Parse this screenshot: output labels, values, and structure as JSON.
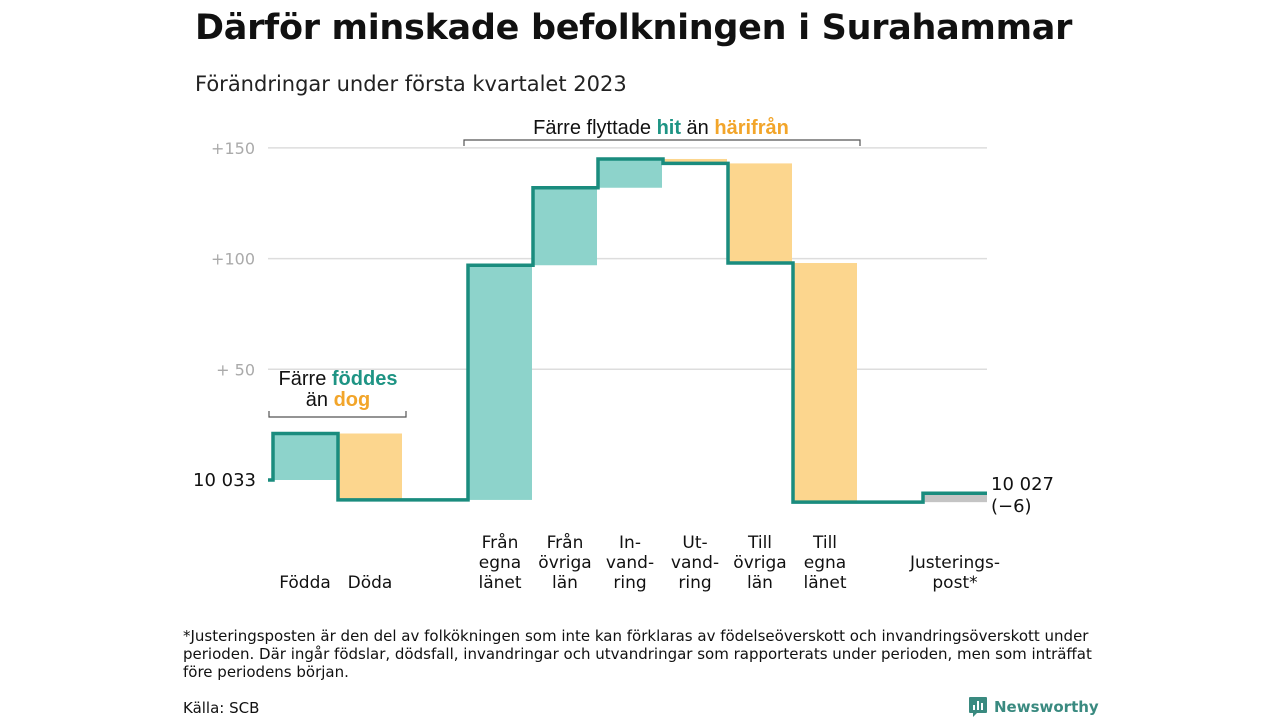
{
  "chart_data": {
    "type": "waterfall",
    "title": "Därför minskade befolkningen i Surahammar",
    "subtitle": "Förändringar under första kvartalet 2023",
    "baseline": 0,
    "start_label": "10 033",
    "end_label": "10 027",
    "end_change_label": "(−6)",
    "ylim": [
      -12,
      152
    ],
    "y_ticks": [
      {
        "value": 50,
        "label": "+ 50"
      },
      {
        "value": 100,
        "label": "+100"
      },
      {
        "value": 150,
        "label": "+150"
      }
    ],
    "grid": true,
    "steps": [
      {
        "lines": [
          "Födda"
        ],
        "value": 21,
        "direction": "up"
      },
      {
        "lines": [
          "Döda"
        ],
        "value": -30,
        "direction": "down"
      },
      {
        "lines": [
          "Från",
          "egna",
          "länet"
        ],
        "value": 106,
        "direction": "up"
      },
      {
        "lines": [
          "Från",
          "övriga",
          "län"
        ],
        "value": 35,
        "direction": "up"
      },
      {
        "lines": [
          "In-",
          "vand-",
          "ring"
        ],
        "value": 13,
        "direction": "up"
      },
      {
        "lines": [
          "Ut-",
          "vand-",
          "ring"
        ],
        "value": -2,
        "direction": "down"
      },
      {
        "lines": [
          "Till",
          "övriga",
          "län"
        ],
        "value": -45,
        "direction": "down"
      },
      {
        "lines": [
          "Till",
          "egna",
          "länet"
        ],
        "value": -108,
        "direction": "down"
      },
      {
        "lines": [
          "Justerings-",
          "post*"
        ],
        "value": 4,
        "direction": "adjustment"
      }
    ],
    "annotations": [
      {
        "lines": [
          {
            "before": "Färre ",
            "highlight": "föddes",
            "after": "",
            "color": "#1e9484"
          },
          {
            "before": "än ",
            "highlight": "dog",
            "after": "",
            "color": "#f2a52a"
          }
        ]
      },
      {
        "lines": [
          {
            "before": "Färre flyttade ",
            "highlight": "hit",
            "after": " än ",
            "color": "#1e9484",
            "highlight2": "härifrån",
            "color2": "#f2a52a"
          }
        ]
      }
    ],
    "colors": {
      "increase": "#8dd3cb",
      "decrease": "#fcd68e",
      "adjustment": "#c4c4c4",
      "line": "#1a8c7e",
      "grid": "#dddddd"
    }
  },
  "footnote": "*Justeringsposten är den del av folkökningen som inte kan förklaras av födelseöverskott och invandringsöverskott under perioden. Där ingår födslar, dödsfall, invandringar och utvandringar som rapporterats under perioden, men som inträffat före periodens början.",
  "source": "Källa: SCB",
  "brand": {
    "name": "Newsworthy",
    "icon": "bar-chart-icon",
    "color": "#3a8a80"
  }
}
